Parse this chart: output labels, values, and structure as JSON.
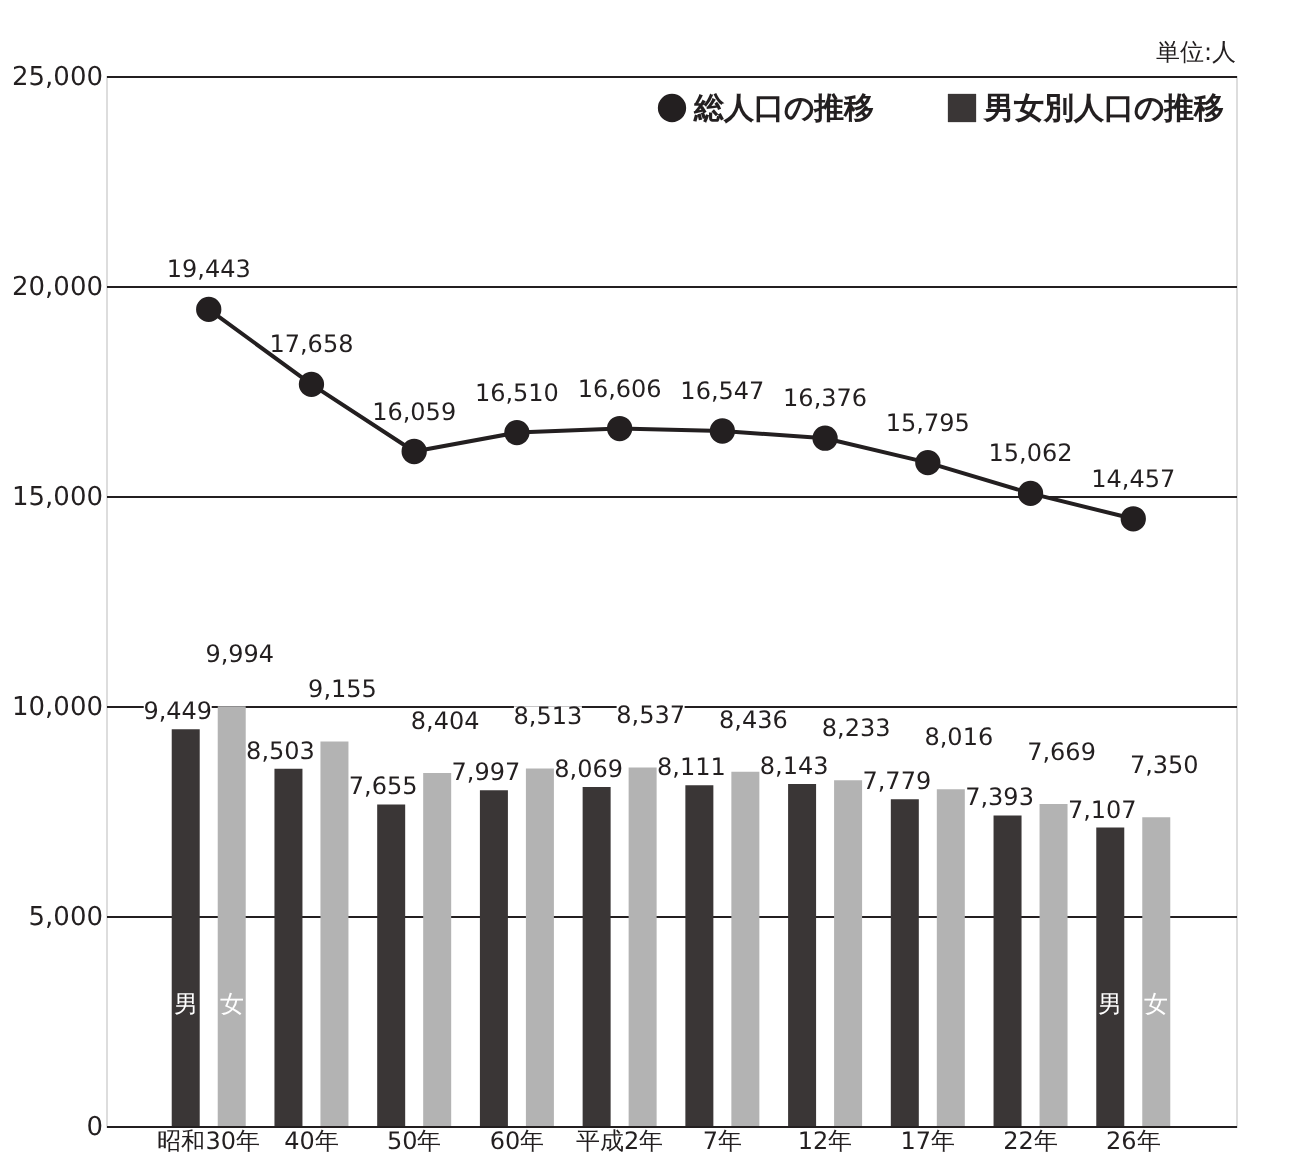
{
  "chart_data": {
    "type": "bar",
    "categories": [
      "昭和30年",
      "40年",
      "50年",
      "60年",
      "平成2年",
      "7年",
      "12年",
      "17年",
      "22年",
      "26年"
    ],
    "series": [
      {
        "name": "男",
        "color": "#3a3636",
        "values": [
          9449,
          8503,
          7655,
          7997,
          8069,
          8111,
          8143,
          7779,
          7393,
          7107
        ],
        "value_labels": [
          "9,449",
          "8,503",
          "7,655",
          "7,997",
          "8,069",
          "8,111",
          "8,143",
          "7,779",
          "7,393",
          "7,107"
        ]
      },
      {
        "name": "女",
        "color": "#b3b3b3",
        "values": [
          9994,
          9155,
          8404,
          8513,
          8537,
          8436,
          8233,
          8016,
          7669,
          7350
        ],
        "value_labels": [
          "9,994",
          "9,155",
          "8,404",
          "8,513",
          "8,537",
          "8,436",
          "8,233",
          "8,016",
          "7,669",
          "7,350"
        ]
      },
      {
        "name": "総人口の推移",
        "type": "line",
        "color": "#231f20",
        "marker": "circle",
        "values": [
          19443,
          17658,
          16059,
          16510,
          16606,
          16547,
          16376,
          15795,
          15062,
          14457
        ],
        "value_labels": [
          "19,443",
          "17,658",
          "16,059",
          "16,510",
          "16,606",
          "16,547",
          "16,376",
          "15,795",
          "15,062",
          "14,457"
        ]
      }
    ],
    "ylim": [
      0,
      25000
    ],
    "yticks": [
      {
        "value": 0,
        "label": "0"
      },
      {
        "value": 5000,
        "label": "5,000"
      },
      {
        "value": 10000,
        "label": "10,000"
      },
      {
        "value": 15000,
        "label": "15,000"
      },
      {
        "value": 20000,
        "label": "20,000"
      },
      {
        "value": 25000,
        "label": "25,000"
      }
    ],
    "grid": "y",
    "legend": "top right",
    "data_labels": true,
    "annotations": [
      "単位:人",
      "男女別人口の推移"
    ]
  }
}
